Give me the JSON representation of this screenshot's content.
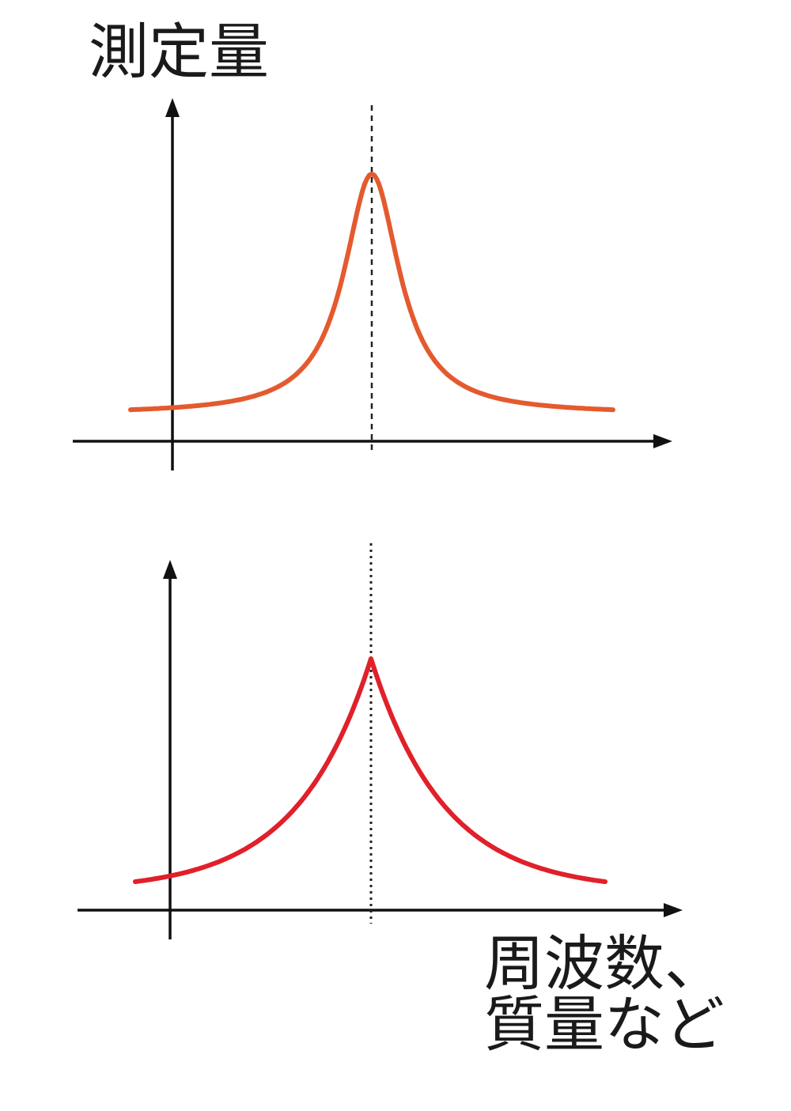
{
  "labels": {
    "y_axis": "測定量",
    "x_axis_line1": "周波数、",
    "x_axis_line2": "質量など"
  },
  "colors": {
    "broad_curve": "#e45a2e",
    "sharp_curve": "#e0202a",
    "axis": "#111111"
  },
  "chart_data": [
    {
      "type": "line",
      "name": "",
      "shape": "lorentzian",
      "peak_x": 0,
      "x_range": [
        -1,
        1
      ],
      "y_range": [
        0,
        1
      ],
      "x": [
        -1,
        -0.8,
        -0.6,
        -0.4,
        -0.3,
        -0.2,
        -0.15,
        -0.1,
        -0.05,
        0,
        0.05,
        0.1,
        0.15,
        0.2,
        0.3,
        0.4,
        0.6,
        0.8,
        1
      ],
      "y": [
        0.11,
        0.14,
        0.18,
        0.28,
        0.38,
        0.55,
        0.68,
        0.82,
        0.95,
        1.0,
        0.95,
        0.82,
        0.68,
        0.55,
        0.38,
        0.28,
        0.18,
        0.14,
        0.11
      ],
      "grid": false
    },
    {
      "type": "line",
      "name": "",
      "shape": "cusp",
      "peak_x": 0,
      "x_range": [
        -1,
        1
      ],
      "y_range": [
        0,
        1
      ],
      "x": [
        -0.82,
        -0.6,
        -0.4,
        -0.2,
        -0.1,
        -0.05,
        0,
        0.05,
        0.1,
        0.2,
        0.4,
        0.6,
        0.82
      ],
      "y": [
        0.11,
        0.17,
        0.3,
        0.5,
        0.66,
        0.78,
        1.0,
        0.78,
        0.66,
        0.5,
        0.3,
        0.17,
        0.11
      ],
      "grid": false
    }
  ]
}
